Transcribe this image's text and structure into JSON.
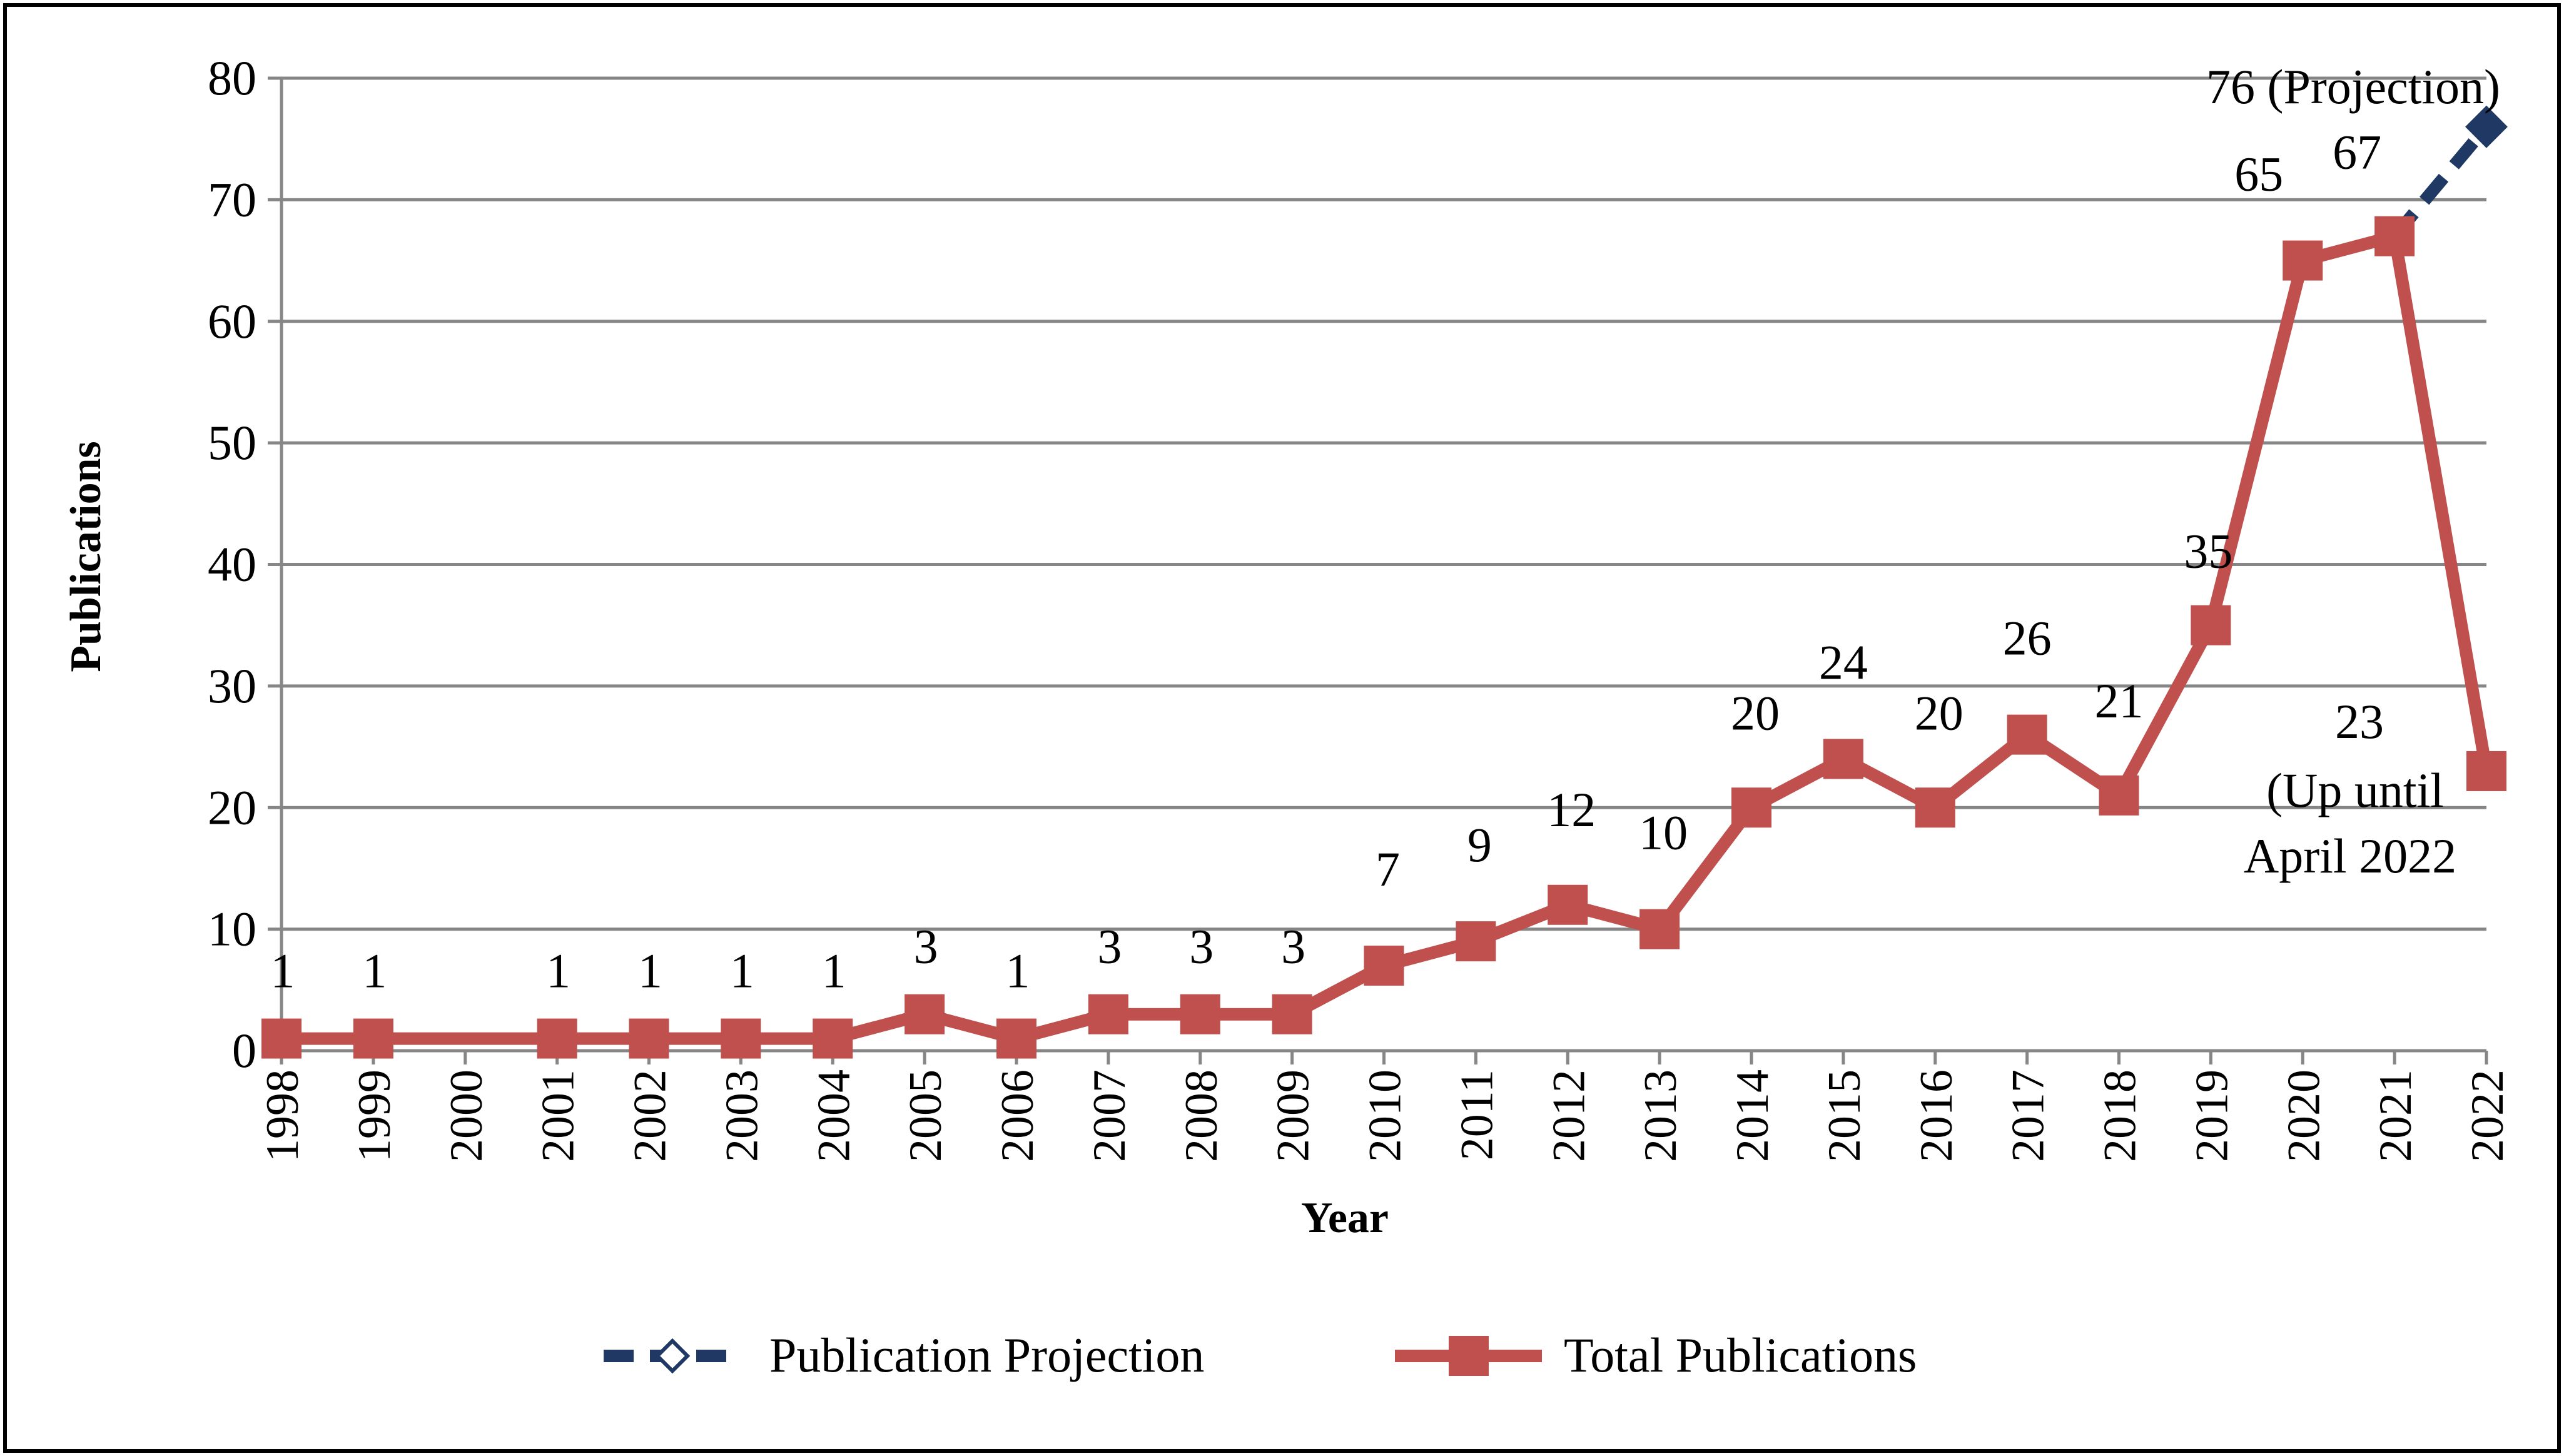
{
  "chart_data": {
    "type": "line",
    "title": "",
    "xlabel": "Year",
    "ylabel": "Publications",
    "ylim": [
      0,
      80
    ],
    "yticks": [
      0,
      10,
      20,
      30,
      40,
      50,
      60,
      70,
      80
    ],
    "categories": [
      "1998",
      "1999",
      "2000",
      "2001",
      "2002",
      "2003",
      "2004",
      "2005",
      "2006",
      "2007",
      "2008",
      "2009",
      "2010",
      "2011",
      "2012",
      "2013",
      "2014",
      "2015",
      "2016",
      "2017",
      "2018",
      "2019",
      "2020",
      "2021",
      "2022"
    ],
    "grid": true,
    "legend_position": "bottom",
    "series": [
      {
        "name": "Publication Projection",
        "style": "dashed",
        "marker": "diamond",
        "color": "#1F3864",
        "points": [
          {
            "year": "2021",
            "value": 67
          },
          {
            "year": "2022",
            "value": 76
          }
        ]
      },
      {
        "name": "Total Publications",
        "style": "solid",
        "marker": "square",
        "color": "#C0504D",
        "points": [
          {
            "year": "1998",
            "value": 1
          },
          {
            "year": "1999",
            "value": 1
          },
          {
            "year": "2001",
            "value": 1
          },
          {
            "year": "2002",
            "value": 1
          },
          {
            "year": "2003",
            "value": 1
          },
          {
            "year": "2004",
            "value": 1
          },
          {
            "year": "2005",
            "value": 3
          },
          {
            "year": "2006",
            "value": 1
          },
          {
            "year": "2007",
            "value": 3
          },
          {
            "year": "2008",
            "value": 3
          },
          {
            "year": "2009",
            "value": 3
          },
          {
            "year": "2010",
            "value": 7
          },
          {
            "year": "2011",
            "value": 9
          },
          {
            "year": "2012",
            "value": 12
          },
          {
            "year": "2013",
            "value": 10
          },
          {
            "year": "2014",
            "value": 20
          },
          {
            "year": "2015",
            "value": 24
          },
          {
            "year": "2016",
            "value": 20
          },
          {
            "year": "2017",
            "value": 26
          },
          {
            "year": "2018",
            "value": 21
          },
          {
            "year": "2019",
            "value": 35
          },
          {
            "year": "2020",
            "value": 65
          },
          {
            "year": "2021",
            "value": 67
          },
          {
            "year": "2022",
            "value": 23
          }
        ]
      }
    ],
    "data_labels": [
      {
        "year": "1998",
        "value": 1,
        "text": "1"
      },
      {
        "year": "1999",
        "value": 1,
        "text": "1"
      },
      {
        "year": "2001",
        "value": 1,
        "text": "1"
      },
      {
        "year": "2002",
        "value": 1,
        "text": "1"
      },
      {
        "year": "2003",
        "value": 1,
        "text": "1"
      },
      {
        "year": "2004",
        "value": 1,
        "text": "1"
      },
      {
        "year": "2005",
        "value": 3,
        "text": "3"
      },
      {
        "year": "2006",
        "value": 1,
        "text": "1"
      },
      {
        "year": "2007",
        "value": 3,
        "text": "3"
      },
      {
        "year": "2008",
        "value": 3,
        "text": "3"
      },
      {
        "year": "2009",
        "value": 3,
        "text": "3"
      },
      {
        "year": "2010",
        "value": 7,
        "text": "7"
      },
      {
        "year": "2011",
        "value": 9,
        "text": "9"
      },
      {
        "year": "2012",
        "value": 12,
        "text": "12"
      },
      {
        "year": "2013",
        "value": 10,
        "text": "10"
      },
      {
        "year": "2014",
        "value": 20,
        "text": "20"
      },
      {
        "year": "2015",
        "value": 24,
        "text": "24"
      },
      {
        "year": "2016",
        "value": 20,
        "text": "20"
      },
      {
        "year": "2017",
        "value": 26,
        "text": "26"
      },
      {
        "year": "2018",
        "value": 21,
        "text": "21"
      },
      {
        "year": "2019",
        "value": 35,
        "text": "35"
      },
      {
        "year": "2020",
        "value": 65,
        "text": "65"
      },
      {
        "year": "2021",
        "value": 67,
        "text": "67"
      }
    ],
    "annotations": {
      "projection_label": "76 (Projection)",
      "current_value": "23",
      "current_note_line1": "(Up until",
      "current_note_line2": "April 2022"
    }
  }
}
